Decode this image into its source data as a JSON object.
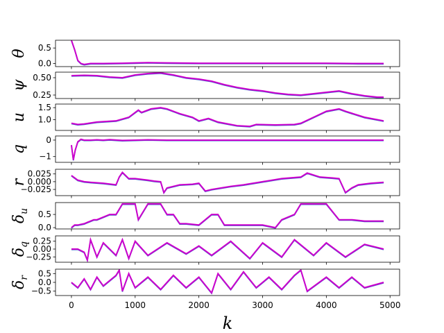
{
  "chart_data": {
    "type": "line",
    "xlabel": "k",
    "xlim": [
      -250,
      5150
    ],
    "xticks": [
      0,
      1000,
      2000,
      3000,
      4000,
      5000
    ],
    "colors": {
      "reference": "#3a5fcd",
      "actual": "#cc00cc"
    },
    "subplots": [
      {
        "name": "theta",
        "ylabel": "θ",
        "ylabel_sub": "",
        "ylim": [
          -0.1,
          0.75
        ],
        "yticks": [
          "0.5",
          "0.0"
        ],
        "ytick_values": [
          0.5,
          0.0
        ],
        "x": [
          0,
          50,
          100,
          150,
          200,
          300,
          500,
          800,
          1000,
          1200,
          1500,
          2000,
          2500,
          3000,
          3500,
          4000,
          4500,
          4900
        ],
        "y": [
          0.75,
          0.45,
          0.1,
          0.0,
          -0.03,
          0.0,
          0.0,
          0.01,
          0.02,
          0.03,
          0.02,
          0.01,
          0.01,
          0.01,
          0.01,
          0.01,
          0.0,
          0.0
        ]
      },
      {
        "name": "psi",
        "ylabel": "ψ",
        "ylabel_sub": "",
        "ylim": [
          0.2,
          0.58
        ],
        "yticks": [
          "0.50",
          "0.25"
        ],
        "ytick_values": [
          0.5,
          0.25
        ],
        "x": [
          0,
          200,
          400,
          600,
          800,
          1000,
          1200,
          1400,
          1600,
          1800,
          2000,
          2200,
          2400,
          2600,
          2800,
          3000,
          3200,
          3400,
          3600,
          3800,
          4000,
          4200,
          4400,
          4600,
          4800,
          4900
        ],
        "y": [
          0.53,
          0.535,
          0.53,
          0.51,
          0.5,
          0.54,
          0.56,
          0.57,
          0.54,
          0.5,
          0.48,
          0.45,
          0.4,
          0.36,
          0.33,
          0.31,
          0.28,
          0.26,
          0.25,
          0.27,
          0.29,
          0.31,
          0.27,
          0.24,
          0.22,
          0.22
        ]
      },
      {
        "name": "u",
        "ylabel": "u",
        "ylabel_sub": "",
        "ylim": [
          0.55,
          1.65
        ],
        "yticks": [
          "1.5",
          "1.0"
        ],
        "ytick_values": [
          1.5,
          1.0
        ],
        "x": [
          0,
          100,
          200,
          400,
          700,
          900,
          1050,
          1100,
          1250,
          1400,
          1500,
          1700,
          1900,
          2000,
          2150,
          2300,
          2600,
          2800,
          2900,
          3200,
          3500,
          3600,
          3800,
          4000,
          4200,
          4300,
          4600,
          4900
        ],
        "y": [
          0.85,
          0.8,
          0.82,
          0.9,
          0.95,
          1.1,
          1.4,
          1.3,
          1.45,
          1.5,
          1.45,
          1.25,
          1.1,
          0.95,
          1.05,
          0.9,
          0.75,
          0.72,
          0.8,
          0.78,
          0.8,
          0.85,
          1.1,
          1.35,
          1.45,
          1.35,
          1.1,
          0.95
        ]
      },
      {
        "name": "q",
        "ylabel": "q",
        "ylabel_sub": "",
        "ylim": [
          -1.35,
          0.25
        ],
        "yticks": [
          "0",
          "−1"
        ],
        "ytick_values": [
          0,
          -1
        ],
        "x": [
          0,
          30,
          60,
          100,
          150,
          200,
          300,
          400,
          500,
          600,
          800,
          1000,
          1200,
          1500,
          2000,
          2500,
          3000,
          3500,
          4000,
          4500,
          4900
        ],
        "y": [
          -0.3,
          -1.2,
          -0.6,
          -0.1,
          0.05,
          0.0,
          0.0,
          0.02,
          0.0,
          0.03,
          -0.02,
          0.0,
          0.02,
          0.0,
          0.0,
          0.0,
          0.0,
          0.0,
          0.0,
          0.0,
          0.0
        ]
      },
      {
        "name": "r",
        "ylabel": "r",
        "ylabel_sub": "",
        "ylim": [
          -0.045,
          0.04
        ],
        "yticks": [
          "0.025",
          "0.000",
          "−0.025"
        ],
        "ytick_values": [
          0.025,
          0.0,
          -0.025
        ],
        "x": [
          0,
          100,
          200,
          300,
          500,
          700,
          750,
          800,
          900,
          1000,
          1200,
          1300,
          1400,
          1450,
          1500,
          1700,
          1900,
          2000,
          2100,
          2200,
          2500,
          2700,
          3000,
          3300,
          3600,
          3700,
          3900,
          4100,
          4200,
          4300,
          4400,
          4500,
          4700,
          4900
        ],
        "y": [
          0.02,
          0.005,
          0.0,
          -0.002,
          -0.005,
          -0.01,
          0.015,
          0.03,
          0.01,
          0.01,
          0.005,
          0.002,
          0.0,
          -0.035,
          -0.02,
          -0.01,
          -0.008,
          -0.005,
          -0.03,
          -0.025,
          -0.015,
          -0.01,
          0.0,
          0.01,
          0.015,
          0.028,
          0.015,
          0.012,
          0.01,
          -0.035,
          -0.02,
          -0.01,
          -0.005,
          -0.002
        ]
      },
      {
        "name": "delta_uc",
        "ylabel": "δ",
        "ylabel_sub": "u",
        "ylim": [
          -0.05,
          0.95
        ],
        "yticks": [
          "0.5",
          "0.0"
        ],
        "ytick_values": [
          0.5,
          0.0
        ],
        "x": [
          0,
          50,
          100,
          200,
          350,
          400,
          600,
          700,
          800,
          1000,
          1050,
          1200,
          1400,
          1500,
          1600,
          1700,
          1800,
          2000,
          2200,
          2300,
          2400,
          2500,
          2700,
          2800,
          3000,
          3200,
          3300,
          3500,
          3600,
          3800,
          4000,
          4200,
          4400,
          4600,
          4900
        ],
        "y": [
          0.0,
          0.1,
          0.1,
          0.15,
          0.3,
          0.3,
          0.5,
          0.5,
          0.9,
          0.9,
          0.3,
          0.9,
          0.9,
          0.5,
          0.5,
          0.15,
          0.15,
          0.1,
          0.5,
          0.5,
          0.1,
          0.1,
          0.1,
          0.1,
          0.1,
          0.0,
          0.3,
          0.5,
          0.9,
          0.9,
          0.9,
          0.3,
          0.3,
          0.25,
          0.25
        ]
      },
      {
        "name": "delta_qc",
        "ylabel": "δ",
        "ylabel_sub": "q",
        "ylim": [
          -0.42,
          0.42
        ],
        "yticks": [
          "0.25",
          "0.00",
          "−0.25"
        ],
        "ytick_values": [
          0.25,
          0.0,
          -0.25
        ],
        "x": [
          0,
          100,
          200,
          250,
          300,
          400,
          500,
          700,
          800,
          900,
          1000,
          1200,
          1500,
          1800,
          2000,
          2200,
          2500,
          2800,
          3000,
          3300,
          3500,
          3800,
          4000,
          4300,
          4600,
          4900
        ],
        "y": [
          0.0,
          0.0,
          -0.1,
          -0.35,
          0.3,
          -0.25,
          0.2,
          -0.2,
          0.3,
          -0.3,
          0.25,
          -0.2,
          0.2,
          -0.15,
          0.1,
          -0.2,
          0.25,
          -0.3,
          0.2,
          -0.25,
          0.3,
          -0.2,
          0.2,
          -0.25,
          0.15,
          0.0
        ]
      },
      {
        "name": "delta_rc",
        "ylabel": "δ",
        "ylabel_sub": "r",
        "ylim": [
          -0.75,
          0.75
        ],
        "yticks": [
          "0.5",
          "0.0",
          "−0.5"
        ],
        "ytick_values": [
          0.5,
          0.0,
          -0.5
        ],
        "x": [
          0,
          100,
          200,
          300,
          400,
          500,
          700,
          750,
          800,
          900,
          1000,
          1200,
          1400,
          1600,
          1800,
          2000,
          2200,
          2300,
          2500,
          2700,
          2900,
          3100,
          3300,
          3500,
          3600,
          3700,
          4000,
          4200,
          4400,
          4600,
          4900
        ],
        "y": [
          0.0,
          -0.3,
          0.2,
          -0.4,
          0.3,
          -0.2,
          0.4,
          0.7,
          -0.5,
          0.5,
          -0.3,
          0.3,
          -0.4,
          0.4,
          -0.3,
          0.3,
          -0.6,
          0.5,
          -0.4,
          0.6,
          -0.3,
          0.3,
          -0.4,
          0.4,
          0.7,
          -0.5,
          0.3,
          -0.3,
          0.3,
          -0.3,
          0.0
        ]
      }
    ]
  }
}
